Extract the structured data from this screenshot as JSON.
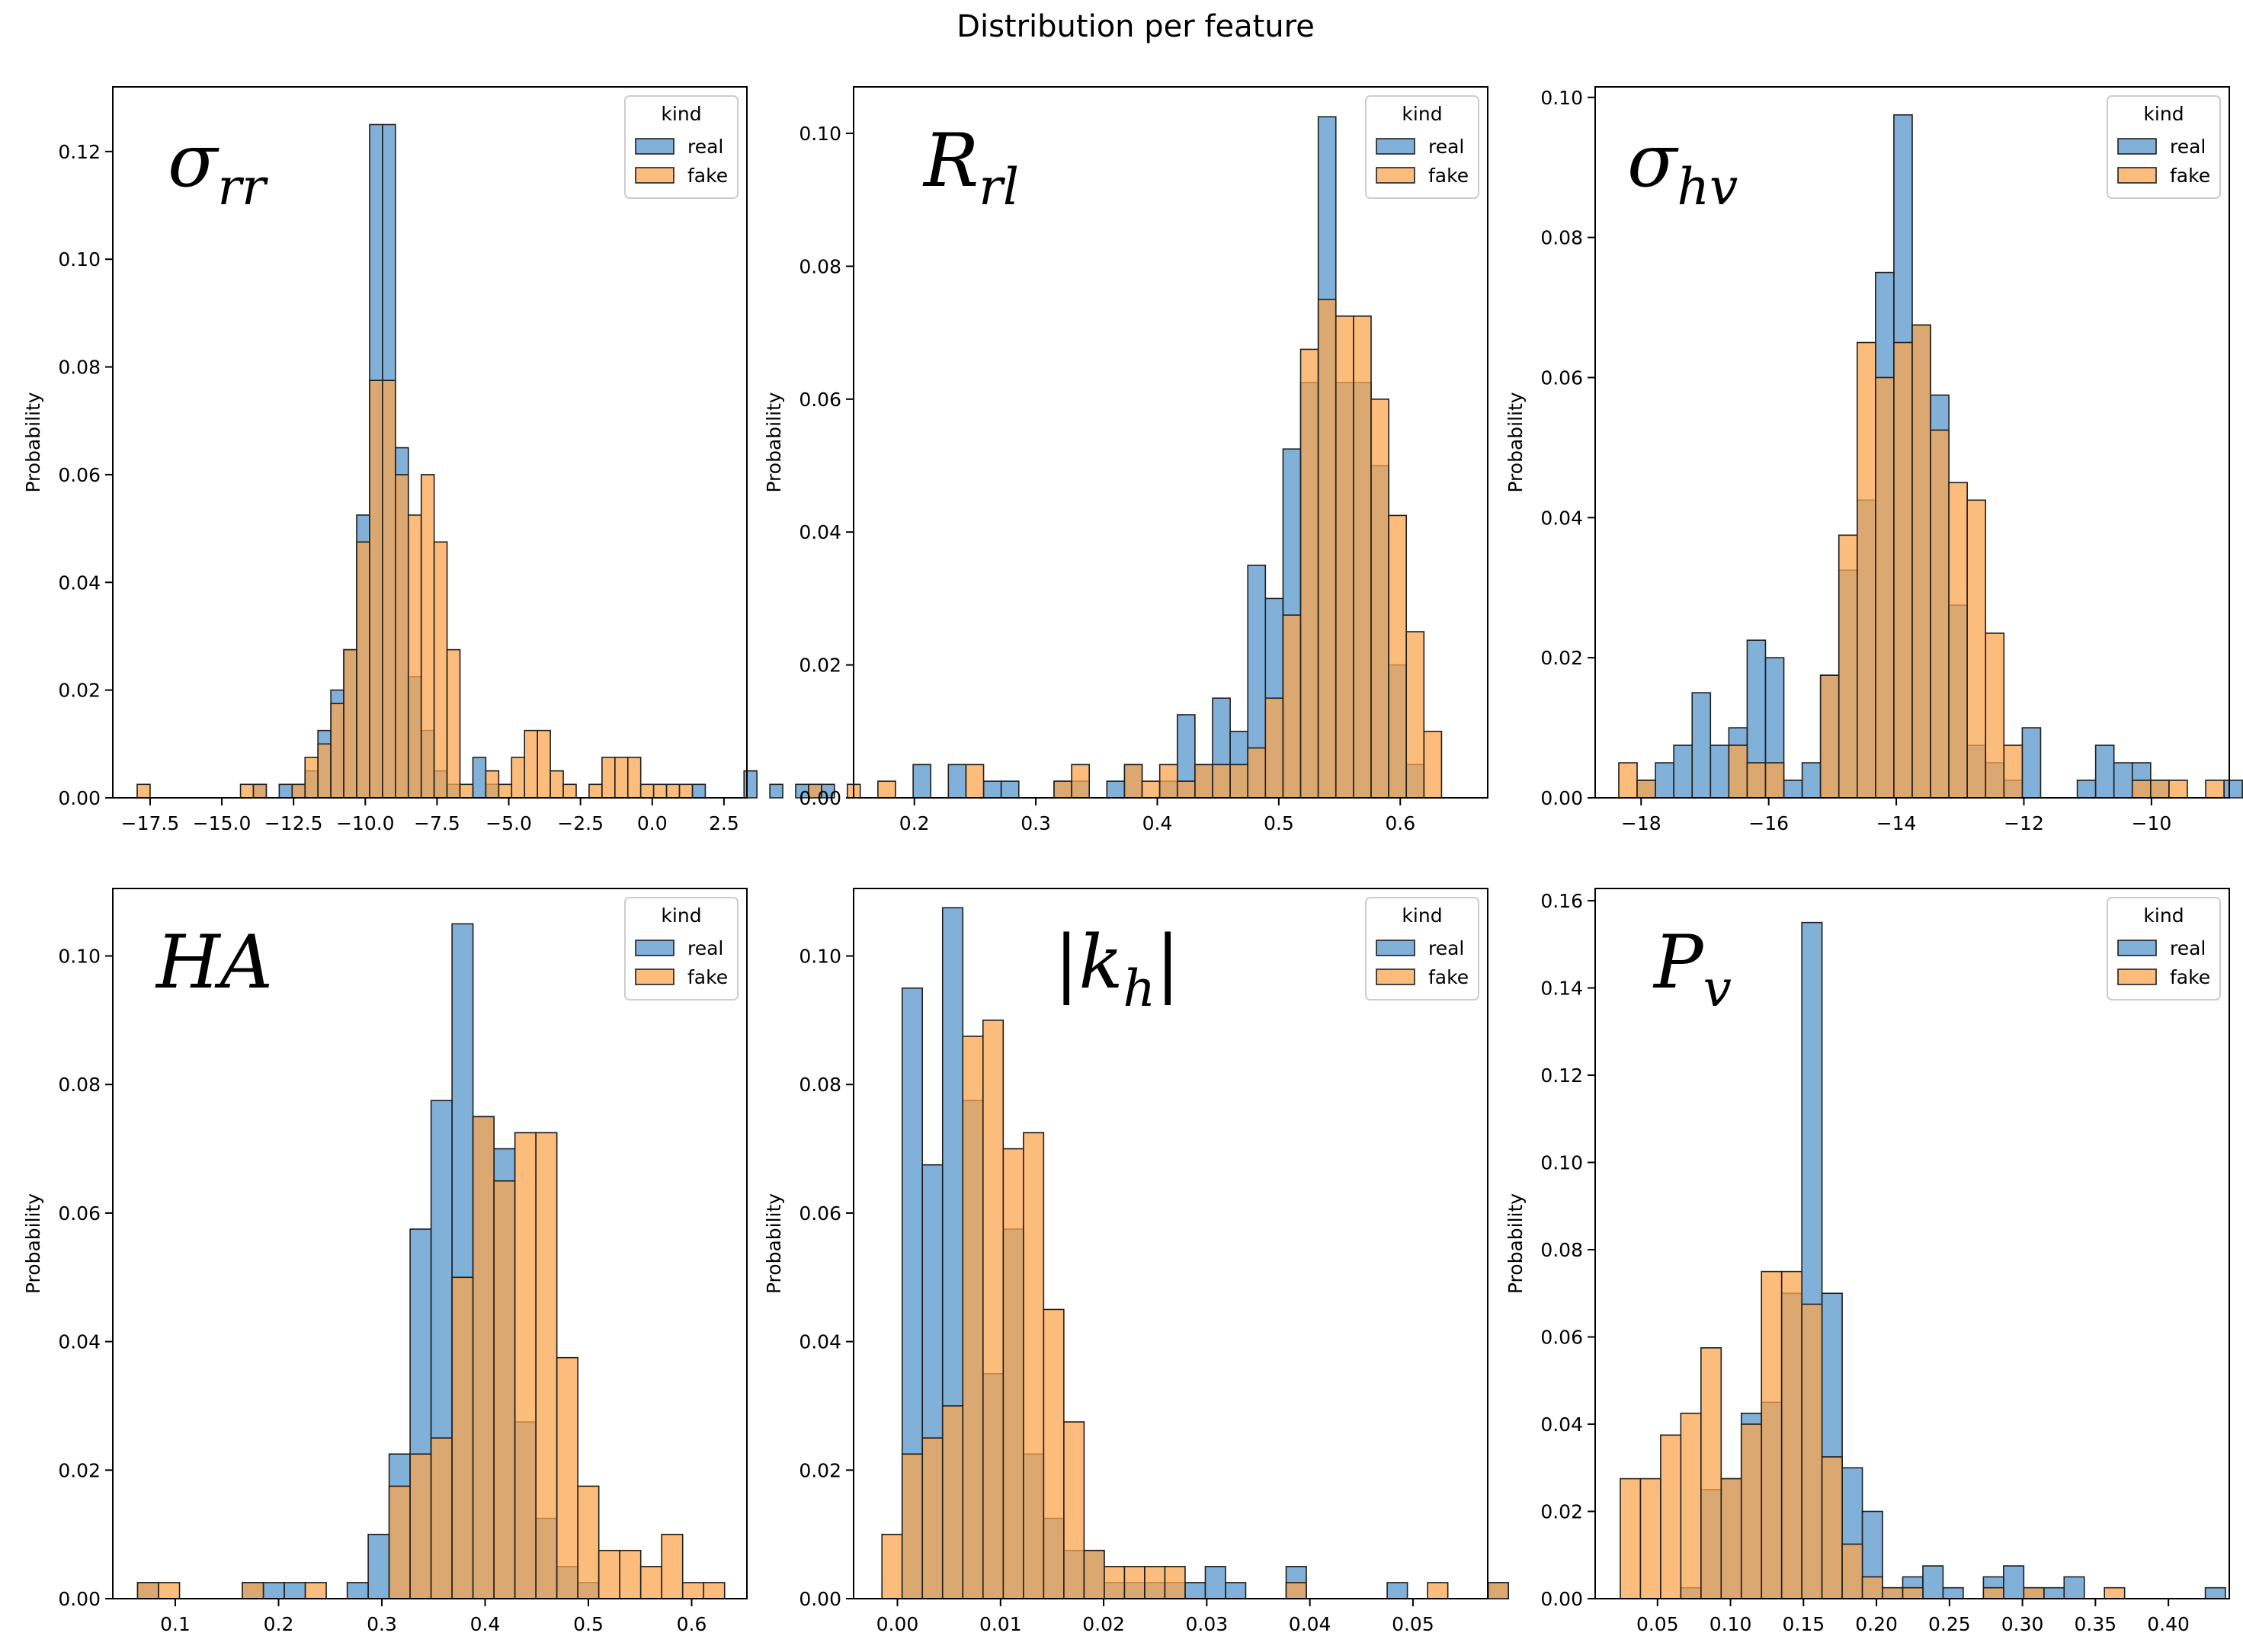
{
  "figure_title": "Distribution per feature",
  "chart_data": [
    {
      "type": "bar",
      "subtype": "histogram",
      "symbol": "σ",
      "subscript": "rr",
      "title": "σrr",
      "xlabel": "",
      "ylabel": "Probability",
      "xlim": [
        -18.8,
        3.3
      ],
      "ylim": [
        0,
        0.132
      ],
      "xticks": [
        -17.5,
        -15.0,
        -12.5,
        -10.0,
        -7.5,
        -5.0,
        -2.5,
        0.0,
        2.5
      ],
      "xtick_labels": [
        "−17.5",
        "−15.0",
        "−12.5",
        "−10.0",
        "−7.5",
        "−5.0",
        "−2.5",
        "0.0",
        "2.5"
      ],
      "yticks": [
        0.0,
        0.02,
        0.04,
        0.06,
        0.08,
        0.1,
        0.12
      ],
      "ytick_labels": [
        "0.00",
        "0.02",
        "0.04",
        "0.06",
        "0.08",
        "0.10",
        "0.12"
      ],
      "bin_start": -17.95,
      "bin_width": 0.45,
      "legend": {
        "title": "kind",
        "location": "top-right",
        "entries": [
          "real",
          "fake"
        ]
      },
      "series": [
        {
          "name": "real",
          "values": [
            0,
            0,
            0,
            0,
            0,
            0,
            0,
            0,
            0,
            0.0025,
            0,
            0.0025,
            0.0025,
            0.005,
            0.0125,
            0.02,
            0.0275,
            0.0525,
            0.125,
            0.125,
            0.065,
            0.0225,
            0.0125,
            0.005,
            0.0025,
            0,
            0.0075,
            0.0025,
            0,
            0,
            0,
            0,
            0,
            0,
            0,
            0,
            0,
            0,
            0,
            0,
            0,
            0,
            0,
            0.0025,
            0,
            0,
            0,
            0.005,
            0,
            0.0025,
            0,
            0.0025,
            0.0025,
            0.0025,
            0,
            0
          ]
        },
        {
          "name": "fake",
          "values": [
            0.0025,
            0,
            0,
            0,
            0,
            0,
            0,
            0,
            0.0025,
            0.0025,
            0,
            0,
            0.0025,
            0.0075,
            0.01,
            0.0175,
            0.0275,
            0.0475,
            0.0775,
            0.0775,
            0.06,
            0.0525,
            0.06,
            0.0475,
            0.0275,
            0.0025,
            0,
            0.005,
            0.0025,
            0.0075,
            0.0125,
            0.0125,
            0.005,
            0.0025,
            0,
            0.0025,
            0.0075,
            0.0075,
            0.0075,
            0.0025,
            0.0025,
            0.0025,
            0.0025,
            0,
            0,
            0,
            0,
            0,
            0,
            0,
            0,
            0,
            0.0025,
            0,
            0,
            0.0025
          ]
        }
      ]
    },
    {
      "type": "bar",
      "subtype": "histogram",
      "symbol": "R",
      "subscript": "rl",
      "title": "Rrl",
      "xlabel": "",
      "ylabel": "Probability",
      "xlim": [
        0.15,
        0.672
      ],
      "ylim": [
        0,
        0.107
      ],
      "xticks": [
        0.2,
        0.3,
        0.4,
        0.5,
        0.6
      ],
      "xtick_labels": [
        "0.2",
        "0.3",
        "0.4",
        "0.5",
        "0.6"
      ],
      "yticks": [
        0.0,
        0.02,
        0.04,
        0.06,
        0.08,
        0.1
      ],
      "ytick_labels": [
        "0.00",
        "0.02",
        "0.04",
        "0.06",
        "0.08",
        "0.10"
      ],
      "bin_start": 0.17,
      "bin_width": 0.0145,
      "legend": {
        "title": "kind",
        "location": "top-right",
        "entries": [
          "real",
          "fake"
        ]
      },
      "series": [
        {
          "name": "real",
          "values": [
            0,
            0,
            0.005,
            0,
            0.005,
            0,
            0.0025,
            0.0025,
            0,
            0,
            0.0025,
            0.0025,
            0,
            0.0025,
            0.005,
            0,
            0.0025,
            0.0125,
            0.005,
            0.015,
            0.01,
            0.035,
            0.03,
            0.0525,
            0.0625,
            0.1025,
            0.0625,
            0.0625,
            0.05,
            0.02,
            0.005,
            0
          ]
        },
        {
          "name": "fake",
          "values": [
            0.0025,
            0,
            0,
            0,
            0,
            0.005,
            0,
            0,
            0,
            0,
            0.0025,
            0.005,
            0,
            0,
            0.005,
            0.0025,
            0.005,
            0.0025,
            0.005,
            0.005,
            0.005,
            0.0075,
            0.015,
            0.0275,
            0.0675,
            0.075,
            0.0725,
            0.0725,
            0.06,
            0.0425,
            0.025,
            0.01
          ]
        }
      ]
    },
    {
      "type": "bar",
      "subtype": "histogram",
      "symbol": "σ",
      "subscript": "hv",
      "title": "σhv",
      "xlabel": "",
      "ylabel": "Probability",
      "xlim": [
        -18.72,
        -8.78
      ],
      "ylim": [
        0,
        0.1015
      ],
      "xticks": [
        -18,
        -16,
        -14,
        -12,
        -10
      ],
      "xtick_labels": [
        "−18",
        "−16",
        "−14",
        "−12",
        "−10"
      ],
      "yticks": [
        0.0,
        0.02,
        0.04,
        0.06,
        0.08,
        0.1
      ],
      "ytick_labels": [
        "0.00",
        "0.02",
        "0.04",
        "0.06",
        "0.08",
        "0.10"
      ],
      "bin_start": -18.35,
      "bin_width": 0.2875,
      "legend": {
        "title": "kind",
        "location": "top-right",
        "entries": [
          "real",
          "fake"
        ]
      },
      "series": [
        {
          "name": "real",
          "values": [
            0,
            0.0025,
            0.005,
            0.0075,
            0.015,
            0.0075,
            0.01,
            0.0225,
            0.02,
            0.0025,
            0.005,
            0.0175,
            0.0325,
            0.0425,
            0.075,
            0.0975,
            0.0675,
            0.0575,
            0.0275,
            0.0075,
            0.005,
            0.0025,
            0.01,
            0,
            0,
            0.0025,
            0.0075,
            0.005,
            0.005,
            0.0025,
            0,
            0,
            0,
            0.0025
          ]
        },
        {
          "name": "fake",
          "values": [
            0.005,
            0.0025,
            0,
            0,
            0,
            0,
            0.0075,
            0.005,
            0.005,
            0,
            0,
            0.0175,
            0.0375,
            0.065,
            0.06,
            0.065,
            0.0675,
            0.0525,
            0.045,
            0.0425,
            0.0235,
            0.0075,
            0,
            0,
            0,
            0,
            0,
            0,
            0.0025,
            0.0025,
            0.0025,
            0,
            0.0025,
            0
          ]
        }
      ]
    },
    {
      "type": "bar",
      "subtype": "histogram",
      "symbol": "HA",
      "subscript": "",
      "title": "HA",
      "xlabel": "",
      "ylabel": "Probability",
      "xlim": [
        0.0395,
        0.6535
      ],
      "ylim": [
        0,
        0.1105
      ],
      "xticks": [
        0.1,
        0.2,
        0.3,
        0.4,
        0.5,
        0.6
      ],
      "xtick_labels": [
        "0.1",
        "0.2",
        "0.3",
        "0.4",
        "0.5",
        "0.6"
      ],
      "yticks": [
        0.0,
        0.02,
        0.04,
        0.06,
        0.08,
        0.1
      ],
      "ytick_labels": [
        "0.00",
        "0.02",
        "0.04",
        "0.06",
        "0.08",
        "0.10"
      ],
      "bin_start": 0.0635,
      "bin_width": 0.0203,
      "legend": {
        "title": "kind",
        "location": "top-right",
        "entries": [
          "real",
          "fake"
        ]
      },
      "series": [
        {
          "name": "real",
          "values": [
            0.0025,
            0,
            0,
            0,
            0,
            0.0025,
            0.0025,
            0.0025,
            0,
            0,
            0.0025,
            0.01,
            0.0225,
            0.0575,
            0.0775,
            0.105,
            0.075,
            0.07,
            0.0275,
            0.0125,
            0.005,
            0.0025,
            0,
            0,
            0,
            0,
            0,
            0
          ]
        },
        {
          "name": "fake",
          "values": [
            0.0025,
            0.0025,
            0,
            0,
            0,
            0.0025,
            0,
            0,
            0.0025,
            0,
            0,
            0,
            0.0175,
            0.0225,
            0.025,
            0.05,
            0.075,
            0.065,
            0.0725,
            0.0725,
            0.0375,
            0.0175,
            0.0075,
            0.0075,
            0.005,
            0.01,
            0.0025,
            0.0025
          ]
        }
      ]
    },
    {
      "type": "bar",
      "subtype": "histogram",
      "symbol": "|k",
      "subscript": "h",
      "suffix": "|",
      "title": "|kh|",
      "xlabel": "",
      "ylabel": "Probability",
      "xlim": [
        -0.00425,
        0.05725
      ],
      "ylim": [
        0,
        0.1105
      ],
      "xticks": [
        0.0,
        0.01,
        0.02,
        0.03,
        0.04,
        0.05
      ],
      "xtick_labels": [
        "0.00",
        "0.01",
        "0.02",
        "0.03",
        "0.04",
        "0.05"
      ],
      "yticks": [
        0.0,
        0.02,
        0.04,
        0.06,
        0.08,
        0.1
      ],
      "ytick_labels": [
        "0.00",
        "0.02",
        "0.04",
        "0.06",
        "0.08",
        "0.10"
      ],
      "bin_start": -0.0015,
      "bin_width": 0.00196,
      "legend": {
        "title": "kind",
        "location": "top-right",
        "entries": [
          "real",
          "fake"
        ]
      },
      "series": [
        {
          "name": "real",
          "values": [
            0,
            0.095,
            0.0675,
            0.1075,
            0.0775,
            0.035,
            0.0575,
            0.0225,
            0.0125,
            0.0075,
            0.0075,
            0.0025,
            0.0025,
            0.0025,
            0.0025,
            0.0025,
            0.005,
            0.0025,
            0,
            0,
            0.005,
            0,
            0,
            0,
            0,
            0.0025,
            0,
            0,
            0,
            0,
            0.0025
          ]
        },
        {
          "name": "fake",
          "values": [
            0.01,
            0.0225,
            0.025,
            0.03,
            0.0875,
            0.09,
            0.07,
            0.0725,
            0.045,
            0.0275,
            0.0075,
            0.005,
            0.005,
            0.005,
            0.005,
            0,
            0,
            0,
            0,
            0,
            0.0025,
            0,
            0,
            0,
            0,
            0,
            0,
            0.0025,
            0,
            0,
            0.0025
          ]
        }
      ]
    },
    {
      "type": "bar",
      "subtype": "histogram",
      "symbol": "P",
      "subscript": "v",
      "title": "Pv",
      "xlabel": "",
      "ylabel": "Probability",
      "xlim": [
        0.0073,
        0.4417
      ],
      "ylim": [
        0,
        0.1628
      ],
      "xticks": [
        0.05,
        0.1,
        0.15,
        0.2,
        0.25,
        0.3,
        0.35,
        0.4
      ],
      "xtick_labels": [
        "0.05",
        "0.10",
        "0.15",
        "0.20",
        "0.25",
        "0.30",
        "0.35",
        "0.40"
      ],
      "yticks": [
        0.0,
        0.02,
        0.04,
        0.06,
        0.08,
        0.1,
        0.12,
        0.14,
        0.16
      ],
      "ytick_labels": [
        "0.00",
        "0.02",
        "0.04",
        "0.06",
        "0.08",
        "0.10",
        "0.12",
        "0.14",
        "0.16"
      ],
      "bin_start": 0.0245,
      "bin_width": 0.01382,
      "legend": {
        "title": "kind",
        "location": "top-right",
        "entries": [
          "real",
          "fake"
        ]
      },
      "series": [
        {
          "name": "real",
          "values": [
            0,
            0,
            0,
            0.0025,
            0.025,
            0.0275,
            0.0425,
            0.045,
            0.07,
            0.155,
            0.07,
            0.03,
            0.02,
            0.0025,
            0.005,
            0.0075,
            0.0025,
            0,
            0.005,
            0.0075,
            0.0025,
            0.0025,
            0.005,
            0,
            0,
            0,
            0,
            0,
            0,
            0.0025
          ]
        },
        {
          "name": "fake",
          "values": [
            0.0275,
            0.0275,
            0.0375,
            0.0425,
            0.0575,
            0.0275,
            0.04,
            0.075,
            0.075,
            0.0675,
            0.0325,
            0.0125,
            0.005,
            0.0025,
            0.0025,
            0,
            0,
            0,
            0.0025,
            0,
            0.0025,
            0,
            0,
            0,
            0.0025,
            0,
            0,
            0,
            0,
            0
          ]
        }
      ]
    }
  ],
  "colors": {
    "real": "#4c8fc7",
    "real_alpha": 0.7,
    "fake": "#fba64f",
    "fake_alpha": 0.75,
    "edge": "#1f1f1f"
  }
}
